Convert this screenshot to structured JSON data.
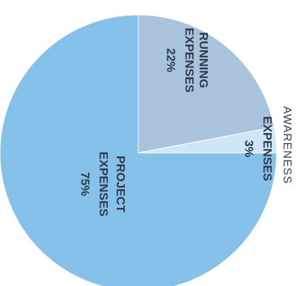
{
  "chart_data": {
    "type": "pie",
    "title": "",
    "slices": [
      {
        "label_lines": [
          "RUNNING",
          "EXPENSES"
        ],
        "value_label": "22%",
        "value": 22,
        "color": "#a9c3dd"
      },
      {
        "label_lines": [
          "EXPENSES"
        ],
        "value_label": "3%",
        "value": 3,
        "color": "#cfe6f7"
      },
      {
        "label_lines": [
          "PROJECT",
          "EXPENSES"
        ],
        "value_label": "75%",
        "value": 75,
        "color": "#86c1e9"
      }
    ],
    "side_label": "AWARENESS",
    "start_angle": "top",
    "direction": "clockwise",
    "text_orientation": "rotated 90° clockwise"
  }
}
